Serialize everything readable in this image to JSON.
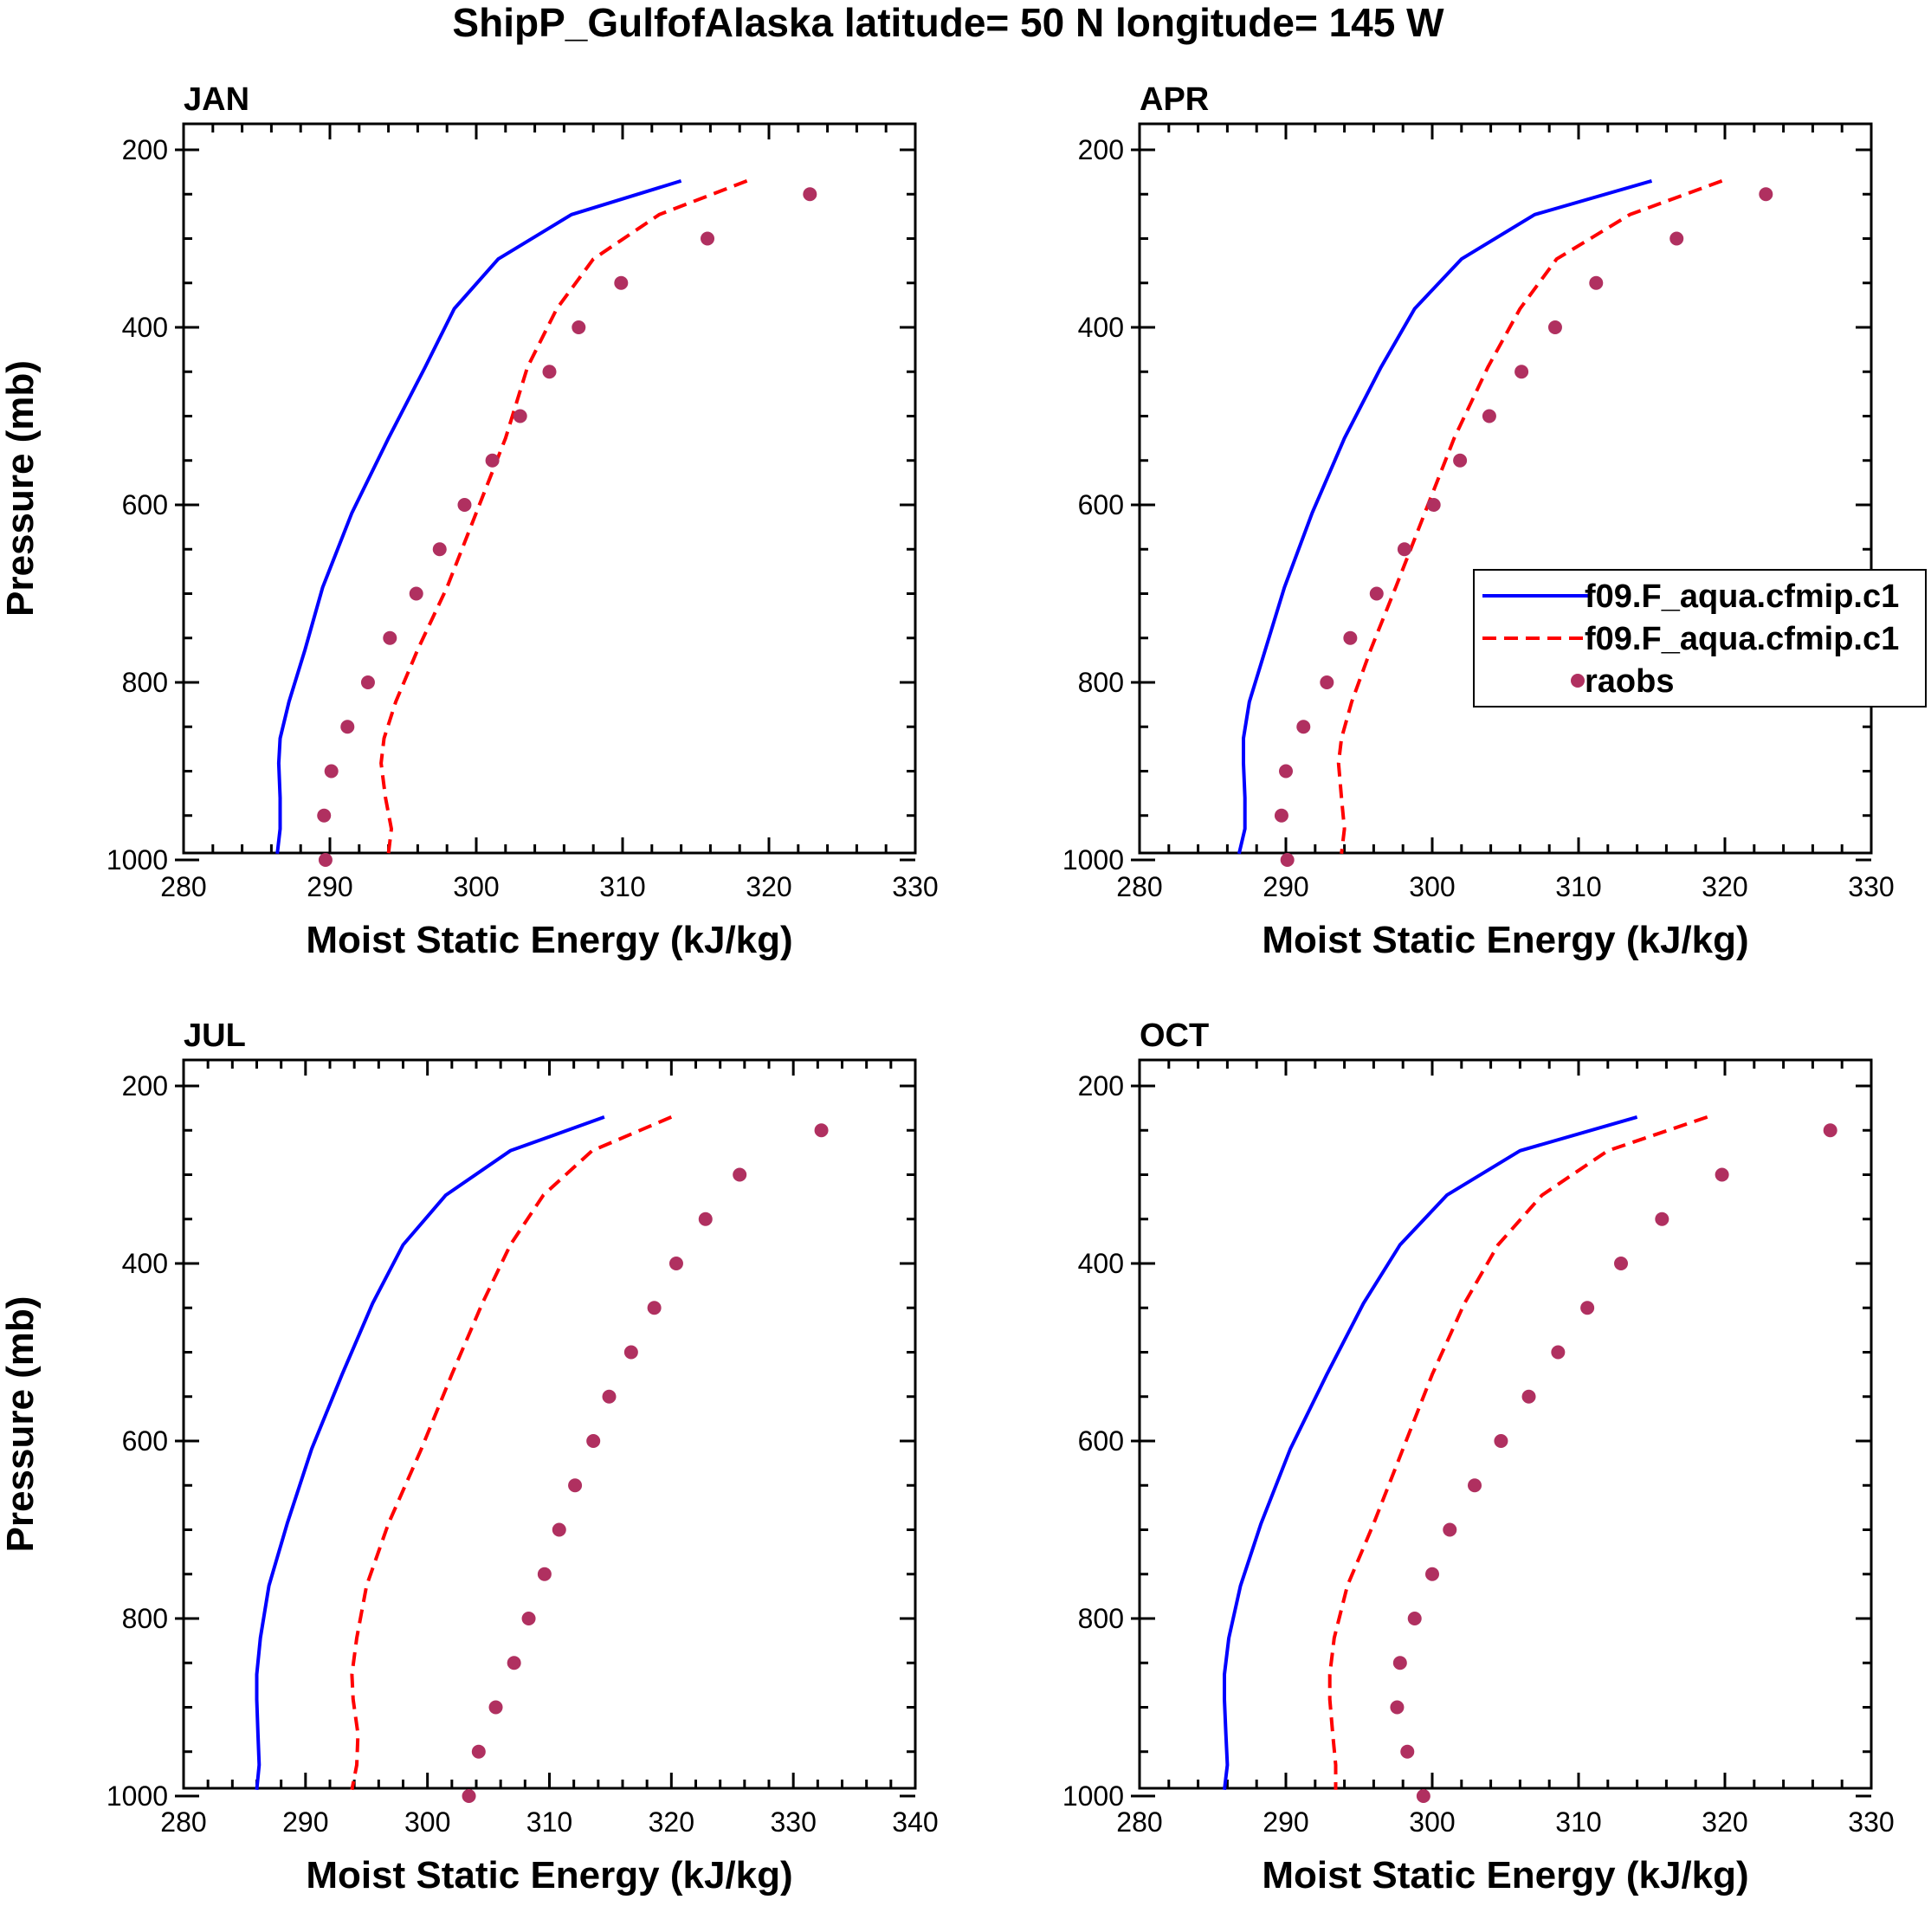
{
  "figure": {
    "title": "ShipP_GulfofAlaska  latitude= 50 N longitude= 145 W"
  },
  "legend": {
    "entries": [
      {
        "label": "f09.F_aqua.cfmip.c1",
        "style": "solid",
        "color": "#0000ff"
      },
      {
        "label": "f09.F_aqua.cfmip.c1",
        "style": "dashed",
        "color": "#ff0000"
      },
      {
        "label": "raobs",
        "style": "marker",
        "color": "#b03060"
      }
    ]
  },
  "chart_data": [
    {
      "type": "line",
      "title": "JAN",
      "xlabel": "Moist Static Energy (kJ/kg)",
      "ylabel": "Pressure (mb)",
      "xlim": [
        280,
        330
      ],
      "ylim": [
        200,
        1000
      ],
      "y_inverted": true,
      "xticks": [
        "280",
        "290",
        "300",
        "310",
        "320",
        "330"
      ],
      "yticks": [
        "200",
        "400",
        "600",
        "800",
        "1000"
      ],
      "series": [
        {
          "name": "f09.F_aqua.cfmip.c1",
          "style": "solid",
          "color": "#0000ff",
          "x": [
            314.0,
            306.5,
            301.5,
            298.5,
            296.5,
            294.0,
            291.5,
            289.5,
            288.3,
            287.2,
            286.6,
            286.5,
            286.6,
            286.6,
            286.4
          ],
          "y": [
            235,
            273,
            323,
            379,
            445,
            525,
            609,
            693,
            763,
            822,
            863,
            891,
            930,
            965,
            993
          ]
        },
        {
          "name": "f09.F_aqua.cfmip.c1",
          "style": "dashed",
          "color": "#ff0000",
          "x": [
            318.5,
            312.5,
            308.0,
            305.5,
            303.5,
            302.0,
            300.0,
            298.0,
            296.0,
            294.5,
            293.7,
            293.5,
            293.8,
            294.2,
            294.0
          ],
          "y": [
            235,
            273,
            323,
            379,
            445,
            525,
            609,
            693,
            763,
            822,
            863,
            891,
            930,
            965,
            993
          ]
        },
        {
          "name": "raobs",
          "style": "marker",
          "color": "#b03060",
          "x": [
            322.8,
            315.8,
            309.9,
            307.0,
            305.0,
            303.0,
            301.1,
            299.2,
            297.5,
            295.9,
            294.1,
            292.6,
            291.2,
            290.1,
            289.6,
            289.7
          ],
          "y": [
            250,
            300,
            350,
            400,
            450,
            500,
            550,
            600,
            650,
            700,
            750,
            800,
            850,
            900,
            950,
            1000
          ]
        }
      ]
    },
    {
      "type": "line",
      "title": "APR",
      "xlabel": "Moist Static Energy (kJ/kg)",
      "ylabel": "",
      "xlim": [
        280,
        330
      ],
      "ylim": [
        200,
        1000
      ],
      "y_inverted": true,
      "xticks": [
        "280",
        "290",
        "300",
        "310",
        "320",
        "330"
      ],
      "yticks": [
        "200",
        "400",
        "600",
        "800",
        "1000"
      ],
      "legend": "right",
      "series": [
        {
          "name": "f09.F_aqua.cfmip.c1",
          "style": "solid",
          "color": "#0000ff",
          "x": [
            315.0,
            307.0,
            302.0,
            298.8,
            296.5,
            294.0,
            291.8,
            289.9,
            288.6,
            287.5,
            287.1,
            287.1,
            287.2,
            287.2,
            286.8
          ],
          "y": [
            235,
            273,
            323,
            379,
            445,
            525,
            609,
            693,
            763,
            822,
            863,
            891,
            930,
            965,
            993
          ]
        },
        {
          "name": "f09.F_aqua.cfmip.c1",
          "style": "dashed",
          "color": "#ff0000",
          "x": [
            319.8,
            313.5,
            308.5,
            306.0,
            303.8,
            301.5,
            299.5,
            297.5,
            295.8,
            294.5,
            293.8,
            293.6,
            293.8,
            294.0,
            293.8
          ],
          "y": [
            235,
            273,
            323,
            379,
            445,
            525,
            609,
            693,
            763,
            822,
            863,
            891,
            930,
            965,
            993
          ]
        },
        {
          "name": "raobs",
          "style": "marker",
          "color": "#b03060",
          "x": [
            322.8,
            316.7,
            311.2,
            308.4,
            306.1,
            303.9,
            301.9,
            300.1,
            298.1,
            296.2,
            294.4,
            292.8,
            291.2,
            290.0,
            289.7,
            290.1
          ],
          "y": [
            250,
            300,
            350,
            400,
            450,
            500,
            550,
            600,
            650,
            700,
            750,
            800,
            850,
            900,
            950,
            1000
          ]
        }
      ]
    },
    {
      "type": "line",
      "title": "JUL",
      "xlabel": "Moist Static Energy (kJ/kg)",
      "ylabel": "Pressure (mb)",
      "xlim": [
        280,
        340
      ],
      "ylim": [
        200,
        1000
      ],
      "y_inverted": true,
      "xticks": [
        "280",
        "290",
        "300",
        "310",
        "320",
        "330",
        "340"
      ],
      "yticks": [
        "200",
        "400",
        "600",
        "800",
        "1000"
      ],
      "series": [
        {
          "name": "f09.F_aqua.cfmip.c1",
          "style": "solid",
          "color": "#0000ff",
          "x": [
            314.5,
            306.8,
            301.5,
            298.0,
            295.5,
            293.0,
            290.5,
            288.5,
            287.0,
            286.3,
            286.0,
            286.0,
            286.1,
            286.2,
            286.0
          ],
          "y": [
            235,
            273,
            323,
            379,
            445,
            525,
            609,
            693,
            763,
            822,
            863,
            891,
            930,
            965,
            993
          ]
        },
        {
          "name": "f09.F_aqua.cfmip.c1",
          "style": "dashed",
          "color": "#ff0000",
          "x": [
            320.0,
            313.5,
            309.5,
            306.8,
            304.5,
            302.0,
            299.5,
            296.8,
            295.0,
            294.2,
            293.8,
            293.9,
            294.3,
            294.2,
            293.8
          ],
          "y": [
            235,
            273,
            323,
            379,
            445,
            525,
            609,
            693,
            763,
            822,
            863,
            891,
            930,
            965,
            993
          ]
        },
        {
          "name": "raobs",
          "style": "marker",
          "color": "#b03060",
          "x": [
            332.3,
            325.6,
            322.8,
            320.4,
            318.6,
            316.7,
            314.9,
            313.6,
            312.1,
            310.8,
            309.6,
            308.3,
            307.1,
            305.6,
            304.2,
            303.4
          ],
          "y": [
            250,
            300,
            350,
            400,
            450,
            500,
            550,
            600,
            650,
            700,
            750,
            800,
            850,
            900,
            950,
            1000
          ]
        }
      ]
    },
    {
      "type": "line",
      "title": "OCT",
      "xlabel": "Moist Static Energy (kJ/kg)",
      "ylabel": "",
      "xlim": [
        280,
        330
      ],
      "ylim": [
        200,
        1000
      ],
      "y_inverted": true,
      "xticks": [
        "280",
        "290",
        "300",
        "310",
        "320",
        "330"
      ],
      "yticks": [
        "200",
        "400",
        "600",
        "800",
        "1000"
      ],
      "series": [
        {
          "name": "f09.F_aqua.cfmip.c1",
          "style": "solid",
          "color": "#0000ff",
          "x": [
            314.0,
            306.0,
            301.0,
            297.8,
            295.3,
            292.8,
            290.3,
            288.3,
            286.9,
            286.1,
            285.8,
            285.8,
            285.9,
            286.0,
            285.8
          ],
          "y": [
            235,
            273,
            323,
            379,
            445,
            525,
            609,
            693,
            763,
            822,
            863,
            891,
            930,
            965,
            993
          ]
        },
        {
          "name": "f09.F_aqua.cfmip.c1",
          "style": "dashed",
          "color": "#ff0000",
          "x": [
            318.8,
            312.0,
            307.5,
            304.5,
            302.2,
            300.0,
            298.0,
            296.0,
            294.2,
            293.3,
            293.0,
            293.0,
            293.2,
            293.4,
            293.4
          ],
          "y": [
            235,
            273,
            323,
            379,
            445,
            525,
            609,
            693,
            763,
            822,
            863,
            891,
            930,
            965,
            993
          ]
        },
        {
          "name": "raobs",
          "style": "marker",
          "color": "#b03060",
          "x": [
            327.2,
            319.8,
            315.7,
            312.9,
            310.6,
            308.6,
            306.6,
            304.7,
            302.9,
            301.2,
            300.0,
            298.8,
            297.8,
            297.6,
            298.3,
            299.4
          ],
          "y": [
            250,
            300,
            350,
            400,
            450,
            500,
            550,
            600,
            650,
            700,
            750,
            800,
            850,
            900,
            950,
            1000
          ]
        }
      ]
    }
  ]
}
